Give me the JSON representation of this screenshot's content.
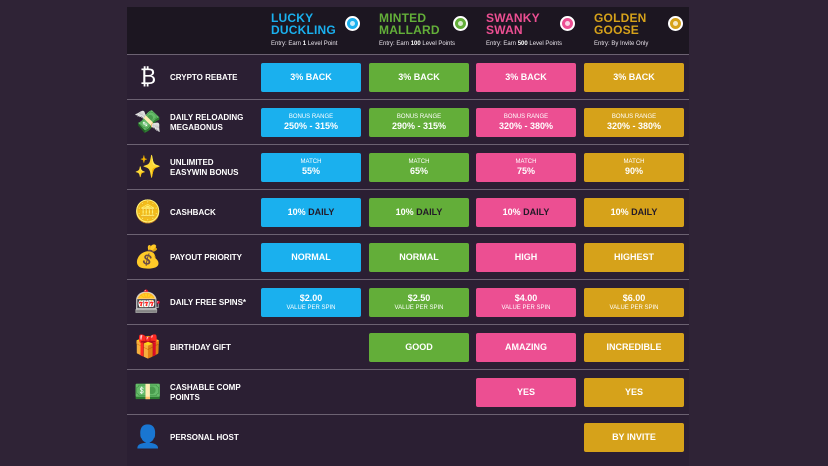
{
  "tiers": [
    {
      "name": "LUCKY\nDUCKLING",
      "entry_prefix": "Entry: Earn ",
      "entry_bold": "1",
      "entry_suffix": " Level Point",
      "color": "#1ab0ee"
    },
    {
      "name": "MINTED\nMALLARD",
      "entry_prefix": "Entry: Earn ",
      "entry_bold": "100",
      "entry_suffix": " Level Points",
      "color": "#63ae39"
    },
    {
      "name": "SWANKY\nSWAN",
      "entry_prefix": "Entry: Earn ",
      "entry_bold": "500",
      "entry_suffix": " Level Points",
      "color": "#ec4f92"
    },
    {
      "name": "GOLDEN\nGOOSE",
      "entry_prefix": "Entry: By Invite Only",
      "entry_bold": "",
      "entry_suffix": "",
      "color": "#d6a21a"
    }
  ],
  "rows": [
    {
      "label": "CRYPTO REBATE",
      "icon": "crypto-coin-icon",
      "cells": [
        {
          "main": "3% BACK"
        },
        {
          "main": "3% BACK"
        },
        {
          "main": "3% BACK"
        },
        {
          "main": "3% BACK"
        }
      ]
    },
    {
      "label": "DAILY RELOADING MEGABONUS",
      "icon": "cash-stack-icon",
      "cells": [
        {
          "sub": "BONUS RANGE",
          "main": "250% - 315%"
        },
        {
          "sub": "BONUS RANGE",
          "main": "290% - 315%"
        },
        {
          "sub": "BONUS RANGE",
          "main": "320% - 380%"
        },
        {
          "sub": "BONUS RANGE",
          "main": "320% - 380%"
        }
      ]
    },
    {
      "label": "UNLIMITED EASYWIN BONUS",
      "icon": "sparkles-icon",
      "cells": [
        {
          "sub": "MATCH",
          "main": "55%"
        },
        {
          "sub": "MATCH",
          "main": "65%"
        },
        {
          "sub": "MATCH",
          "main": "75%"
        },
        {
          "sub": "MATCH",
          "main": "90%"
        }
      ]
    },
    {
      "label": "CASHBACK",
      "icon": "cashback-coin-icon",
      "cells": [
        {
          "main": "10% ",
          "dark": "DAILY"
        },
        {
          "main": "10% ",
          "dark": "DAILY"
        },
        {
          "main": "10% ",
          "dark": "DAILY"
        },
        {
          "main": "10% ",
          "dark": "DAILY"
        }
      ]
    },
    {
      "label": "PAYOUT PRIORITY",
      "icon": "money-bag-icon",
      "cells": [
        {
          "main": "NORMAL"
        },
        {
          "main": "NORMAL"
        },
        {
          "main": "HIGH"
        },
        {
          "main": "HIGHEST"
        }
      ]
    },
    {
      "label": "DAILY FREE SPINS*",
      "icon": "slot-machine-icon",
      "cells": [
        {
          "main": "$2.00",
          "small": "VALUE PER SPIN"
        },
        {
          "main": "$2.50",
          "small": "VALUE PER SPIN"
        },
        {
          "main": "$4.00",
          "small": "VALUE PER SPIN"
        },
        {
          "main": "$6.00",
          "small": "VALUE PER SPIN"
        }
      ]
    },
    {
      "label": "BIRTHDAY GIFT",
      "icon": "gift-icon",
      "cells": [
        null,
        {
          "main": "GOOD"
        },
        {
          "main": "AMAZING"
        },
        {
          "main": "INCREDIBLE"
        }
      ]
    },
    {
      "label": "CASHABLE COMP POINTS",
      "icon": "comp-points-icon",
      "cells": [
        null,
        null,
        {
          "main": "YES"
        },
        {
          "main": "YES"
        }
      ]
    },
    {
      "label": "PERSONAL HOST",
      "icon": "host-avatar-icon",
      "cells": [
        null,
        null,
        null,
        {
          "main": "BY INVITE"
        }
      ]
    }
  ],
  "icon_glyphs": {
    "crypto-coin-icon": "₿",
    "cash-stack-icon": "💸",
    "sparkles-icon": "✨",
    "cashback-coin-icon": "🪙",
    "money-bag-icon": "💰",
    "slot-machine-icon": "🎰",
    "gift-icon": "🎁",
    "comp-points-icon": "💵",
    "host-avatar-icon": "👤"
  }
}
